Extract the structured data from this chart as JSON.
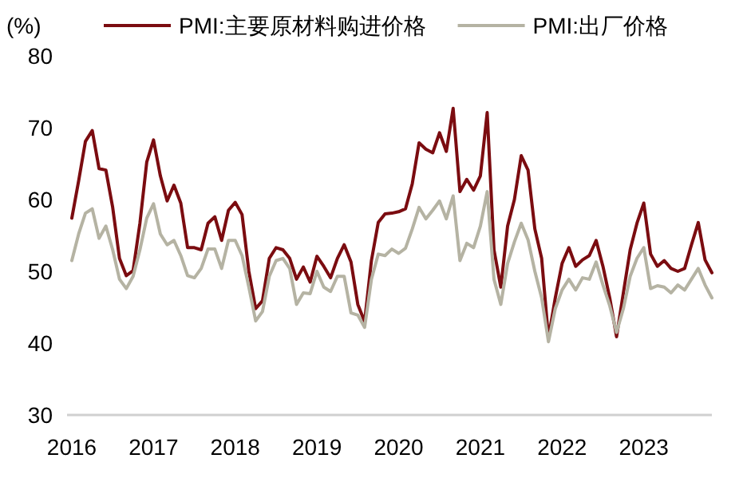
{
  "chart_data": {
    "type": "line",
    "ylabel": "(%)",
    "legend": "top",
    "x": [
      "2016-01",
      "2016-02",
      "2016-03",
      "2016-04",
      "2016-05",
      "2016-06",
      "2016-07",
      "2016-08",
      "2016-09",
      "2016-10",
      "2016-11",
      "2016-12",
      "2017-01",
      "2017-02",
      "2017-03",
      "2017-04",
      "2017-05",
      "2017-06",
      "2017-07",
      "2017-08",
      "2017-09",
      "2017-10",
      "2017-11",
      "2017-12",
      "2018-01",
      "2018-02",
      "2018-03",
      "2018-04",
      "2018-05",
      "2018-06",
      "2018-07",
      "2018-08",
      "2018-09",
      "2018-10",
      "2018-11",
      "2018-12",
      "2019-01",
      "2019-02",
      "2019-03",
      "2019-04",
      "2019-05",
      "2019-06",
      "2019-07",
      "2019-08",
      "2019-09",
      "2019-10",
      "2019-11",
      "2019-12",
      "2020-01",
      "2020-02",
      "2020-03",
      "2020-04",
      "2020-05",
      "2020-06",
      "2020-07",
      "2020-08",
      "2020-09",
      "2020-10",
      "2020-11",
      "2020-12",
      "2021-01",
      "2021-02",
      "2021-03",
      "2021-04",
      "2021-05",
      "2021-06",
      "2021-07",
      "2021-08",
      "2021-09",
      "2021-10",
      "2021-11",
      "2021-12",
      "2022-01",
      "2022-02",
      "2022-03",
      "2022-04",
      "2022-05",
      "2022-06",
      "2022-07",
      "2022-08",
      "2022-09",
      "2022-10",
      "2022-11",
      "2022-12",
      "2023-01",
      "2023-02",
      "2023-03",
      "2023-04",
      "2023-05",
      "2023-06",
      "2023-07",
      "2023-08",
      "2023-09",
      "2023-10",
      "2023-11"
    ],
    "xlim": [
      "2016-01",
      "2023-11"
    ],
    "xticks": [
      {
        "value": "2016-01",
        "label": "2016"
      },
      {
        "value": "2017-01",
        "label": "2017"
      },
      {
        "value": "2018-01",
        "label": "2018"
      },
      {
        "value": "2019-01",
        "label": "2019"
      },
      {
        "value": "2020-01",
        "label": "2020"
      },
      {
        "value": "2021-01",
        "label": "2021"
      },
      {
        "value": "2022-01",
        "label": "2022"
      },
      {
        "value": "2023-01",
        "label": "2023"
      }
    ],
    "ylim": [
      30,
      80
    ],
    "yticks": [
      30,
      40,
      50,
      60,
      70,
      80
    ],
    "series": [
      {
        "name": "PMI:主要原材料购进价格",
        "color": "#7b0c10",
        "values": [
          57.4,
          62.6,
          68.1,
          69.6,
          64.3,
          64.1,
          58.9,
          51.8,
          49.4,
          50.1,
          56.7,
          65.2,
          68.3,
          63.3,
          59.8,
          62.0,
          59.5,
          53.3,
          53.3,
          53.0,
          56.7,
          57.6,
          54.3,
          58.5,
          59.6,
          57.9,
          50.0,
          44.8,
          45.9,
          51.8,
          53.3,
          53.0,
          51.8,
          48.9,
          50.6,
          48.5,
          52.1,
          50.7,
          49.1,
          51.8,
          53.7,
          51.3,
          45.4,
          43.0,
          51.5,
          56.8,
          58.0,
          58.1,
          58.3,
          58.7,
          62.2,
          67.9,
          67.0,
          66.5,
          69.3,
          66.7,
          72.7,
          61.1,
          62.8,
          61.3,
          63.3,
          72.1,
          53.0,
          47.8,
          56.3,
          60.0,
          66.1,
          64.1,
          55.9,
          51.8,
          40.7,
          46.3,
          51.1,
          53.3,
          50.7,
          51.6,
          52.2,
          54.3,
          50.7,
          46.3,
          40.9,
          47.0,
          53.0,
          56.7,
          59.5,
          52.4,
          50.7,
          51.5,
          50.4,
          50.0,
          50.4,
          53.7,
          56.8,
          51.6,
          49.8
        ]
      },
      {
        "name": "PMI:出厂价格",
        "color": "#b5b3a3",
        "values": [
          51.5,
          55.2,
          58.1,
          58.7,
          54.6,
          56.3,
          53.0,
          48.9,
          47.6,
          49.3,
          53.0,
          57.4,
          59.4,
          55.2,
          53.7,
          54.3,
          52.2,
          49.4,
          49.1,
          50.4,
          53.1,
          53.1,
          50.4,
          54.3,
          54.3,
          52.2,
          47.8,
          43.1,
          44.4,
          49.3,
          51.5,
          51.8,
          50.4,
          45.4,
          47.0,
          46.9,
          50.0,
          47.8,
          47.2,
          49.3,
          49.3,
          44.2,
          43.9,
          42.2,
          48.9,
          52.4,
          52.2,
          53.1,
          52.5,
          53.2,
          55.9,
          58.9,
          57.3,
          58.5,
          59.8,
          57.3,
          60.5,
          51.5,
          53.9,
          53.3,
          56.3,
          61.1,
          48.9,
          45.4,
          51.1,
          54.1,
          56.7,
          54.4,
          50.0,
          46.3,
          40.2,
          44.8,
          47.4,
          48.9,
          47.4,
          49.1,
          48.9,
          51.3,
          48.1,
          45.2,
          41.5,
          44.8,
          49.3,
          51.8,
          53.3,
          47.6,
          48.0,
          47.8,
          47.0,
          48.1,
          47.4,
          48.9,
          50.4,
          48.1,
          46.3
        ]
      }
    ]
  }
}
